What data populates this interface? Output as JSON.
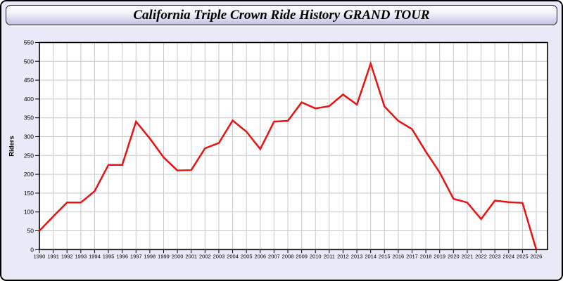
{
  "window": {
    "title": "California Triple Crown Ride History GRAND TOUR"
  },
  "chart_data": {
    "type": "line",
    "title": "California Triple Crown Ride History GRAND TOUR",
    "xlabel": "",
    "ylabel": "Riders",
    "x": [
      1990,
      1991,
      1992,
      1993,
      1994,
      1995,
      1996,
      1997,
      1998,
      1999,
      2000,
      2001,
      2002,
      2003,
      2004,
      2005,
      2006,
      2007,
      2008,
      2009,
      2010,
      2011,
      2012,
      2013,
      2014,
      2015,
      2016,
      2017,
      2018,
      2019,
      2020,
      2021,
      2022,
      2023,
      2024,
      2025,
      2026
    ],
    "series": [
      {
        "name": "Riders",
        "color": "#ee1111",
        "values": [
          50,
          88,
          125,
          125,
          155,
          225,
          225,
          340,
          295,
          245,
          210,
          211,
          269,
          283,
          343,
          313,
          267,
          340,
          342,
          391,
          375,
          381,
          412,
          385,
          494,
          380,
          342,
          320,
          260,
          205,
          135,
          125,
          81,
          130,
          126,
          124,
          0
        ]
      }
    ],
    "ylim": [
      0,
      550
    ],
    "ytick_step": 50,
    "xtick_every": 1,
    "grid": true,
    "legend_position": "none",
    "colors": {
      "line": "#ee1111",
      "grid": "#c9c9c9",
      "axis": "#000000",
      "plot_bg": "#ffffff",
      "panel_bg": "#e9e9f8",
      "tick_text": "#000000"
    }
  }
}
